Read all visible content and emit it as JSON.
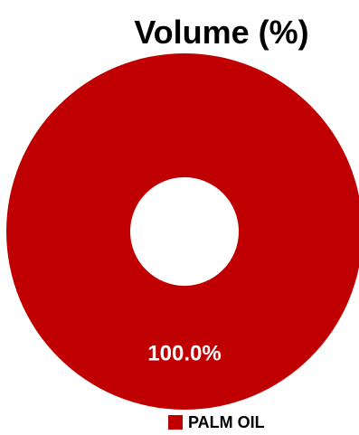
{
  "chart_data": {
    "type": "pie",
    "variant": "donut",
    "title": "Volume (%)",
    "categories": [
      "PALM OIL"
    ],
    "values": [
      100.0
    ],
    "data_labels": [
      "100.0%"
    ],
    "legend": {
      "position": "bottom",
      "entries": [
        {
          "label": "PALM OIL",
          "color": "#C00000"
        }
      ]
    },
    "colors": [
      "#C00000"
    ]
  }
}
